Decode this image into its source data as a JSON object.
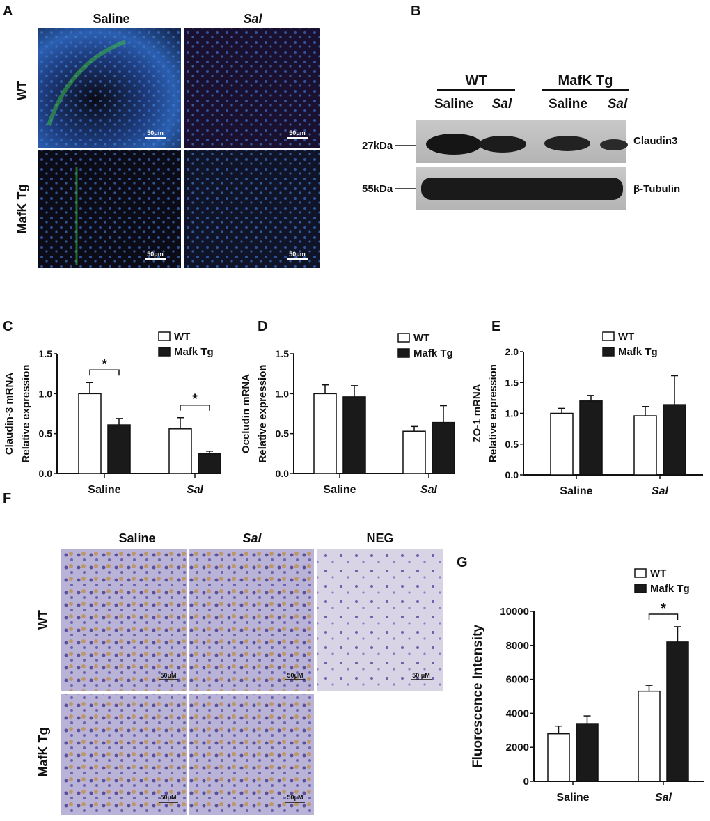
{
  "panels": {
    "A": {
      "label": "A",
      "col_headers": [
        "Saline",
        "Sal"
      ],
      "row_headers": [
        "WT",
        "MafK Tg"
      ],
      "scale_bars": [
        "50μm",
        "50μm",
        "50μm",
        "50μm"
      ]
    },
    "B": {
      "label": "B",
      "groups": [
        "WT",
        "MafK Tg"
      ],
      "lanes": [
        "Saline",
        "Sal",
        "Saline",
        "Sal"
      ],
      "markers": [
        "27kDa",
        "55kDa"
      ],
      "proteins": [
        "Claudin3",
        "β-Tubulin"
      ]
    },
    "C": {
      "label": "C"
    },
    "D": {
      "label": "D"
    },
    "E": {
      "label": "E"
    },
    "F": {
      "label": "F",
      "col_headers": [
        "Saline",
        "Sal",
        "NEG"
      ],
      "row_headers": [
        "WT",
        "MafK Tg"
      ],
      "scale_bars": [
        "50μM",
        "50μM",
        "50 μM",
        "50μM",
        "50μM"
      ]
    },
    "G": {
      "label": "G"
    }
  },
  "colors": {
    "wt": "#ffffff",
    "tg": "#1a1a1a",
    "dapi": "#2b4fa8",
    "stain": "#3ec23e",
    "ihc_purple": "#7a6fb8",
    "ihc_brown": "#b07a2c"
  },
  "chart_data": [
    {
      "panel": "C",
      "type": "bar",
      "categories": [
        "Saline",
        "Sal"
      ],
      "ylabel": [
        "Claudin-3 mRNA",
        "Relative expression"
      ],
      "ylim": [
        0,
        1.5
      ],
      "yticks": [
        "0.0",
        "0.5",
        "1.0",
        "1.5"
      ],
      "series": [
        {
          "name": "WT",
          "values": [
            1.0,
            0.56
          ],
          "errors": [
            0.14,
            0.14
          ]
        },
        {
          "name": "Mafk Tg",
          "values": [
            0.61,
            0.25
          ],
          "errors": [
            0.08,
            0.03
          ]
        }
      ],
      "significance": [
        {
          "category": "Saline",
          "label": "*"
        },
        {
          "category": "Sal",
          "label": "*"
        }
      ],
      "legend": "top-right"
    },
    {
      "panel": "D",
      "type": "bar",
      "categories": [
        "Saline",
        "Sal"
      ],
      "ylabel": [
        "Occludin mRNA",
        "Relative expression"
      ],
      "ylim": [
        0,
        1.5
      ],
      "yticks": [
        "0.0",
        "0.5",
        "1.0",
        "1.5"
      ],
      "series": [
        {
          "name": "WT",
          "values": [
            1.0,
            0.53
          ],
          "errors": [
            0.11,
            0.06
          ]
        },
        {
          "name": "Mafk Tg",
          "values": [
            0.96,
            0.64
          ],
          "errors": [
            0.14,
            0.21
          ]
        }
      ],
      "significance": [],
      "legend": "top-right"
    },
    {
      "panel": "E",
      "type": "bar",
      "categories": [
        "Saline",
        "Sal"
      ],
      "ylabel": [
        "ZO-1 mRNA",
        "Relative expression"
      ],
      "ylim": [
        0,
        2.0
      ],
      "yticks": [
        "0.0",
        "0.5",
        "1.0",
        "1.5",
        "2.0"
      ],
      "series": [
        {
          "name": "WT",
          "values": [
            1.0,
            0.96
          ],
          "errors": [
            0.08,
            0.15
          ]
        },
        {
          "name": "Mafk Tg",
          "values": [
            1.2,
            1.14
          ],
          "errors": [
            0.09,
            0.47
          ]
        }
      ],
      "significance": [],
      "legend": "top-right"
    },
    {
      "panel": "G",
      "type": "bar",
      "categories": [
        "Saline",
        "Sal"
      ],
      "ylabel": [
        "Fluorescence Intensity"
      ],
      "ylim": [
        0,
        10000
      ],
      "yticks": [
        "0",
        "2000",
        "4000",
        "6000",
        "8000",
        "10000"
      ],
      "series": [
        {
          "name": "WT",
          "values": [
            2800,
            5300
          ],
          "errors": [
            450,
            350
          ]
        },
        {
          "name": "Mafk Tg",
          "values": [
            3400,
            8200
          ],
          "errors": [
            450,
            900
          ]
        }
      ],
      "significance": [
        {
          "category": "Sal",
          "label": "*"
        }
      ],
      "legend": "top-right"
    }
  ]
}
